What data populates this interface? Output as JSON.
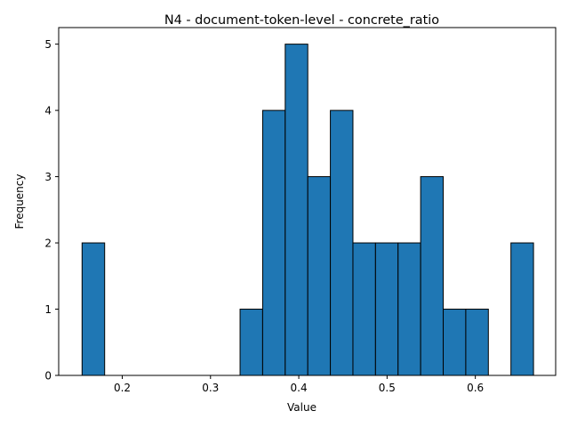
{
  "chart_data": {
    "type": "bar",
    "title": "N4 - document-token-level - concrete_ratio",
    "xlabel": "Value",
    "ylabel": "Frequency",
    "xlim": [
      0.128,
      0.691
    ],
    "ylim": [
      0,
      5.25
    ],
    "xticks": [
      0.2,
      0.3,
      0.4,
      0.5,
      0.6
    ],
    "xtick_labels": [
      "0.2",
      "0.3",
      "0.4",
      "0.5",
      "0.6"
    ],
    "yticks": [
      0,
      1,
      2,
      3,
      4,
      5
    ],
    "ytick_labels": [
      "0",
      "1",
      "2",
      "3",
      "4",
      "5"
    ],
    "bin_start": 0.1545,
    "bin_width": 0.02557,
    "values": [
      2,
      0,
      0,
      0,
      0,
      0,
      0,
      1,
      4,
      5,
      3,
      4,
      2,
      2,
      2,
      3,
      1,
      1,
      0,
      2
    ],
    "bar_color": "#1f77b4",
    "edge_color": "#000000",
    "grid": false,
    "legend": "none"
  }
}
